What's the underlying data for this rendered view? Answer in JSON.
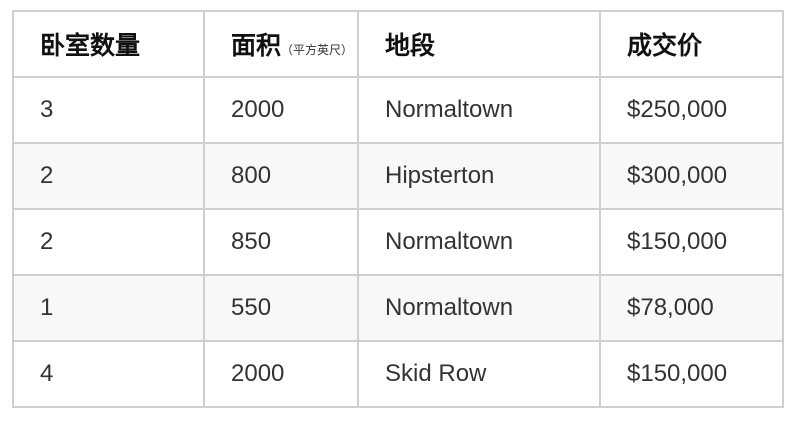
{
  "table": {
    "headers": [
      {
        "label": "卧室数量"
      },
      {
        "label": "面积",
        "unit": "（平方英尺）"
      },
      {
        "label": "地段"
      },
      {
        "label": "成交价"
      }
    ],
    "rows": [
      [
        "3",
        "2000",
        "Normaltown",
        "$250,000"
      ],
      [
        "2",
        "800",
        "Hipsterton",
        "$300,000"
      ],
      [
        "2",
        "850",
        "Normaltown",
        "$150,000"
      ],
      [
        "1",
        "550",
        "Normaltown",
        "$78,000"
      ],
      [
        "4",
        "2000",
        "Skid Row",
        "$150,000"
      ]
    ]
  },
  "colors": {
    "border": "#cfcfcf",
    "stripe": "#f8f8f8",
    "text": "#333333"
  }
}
